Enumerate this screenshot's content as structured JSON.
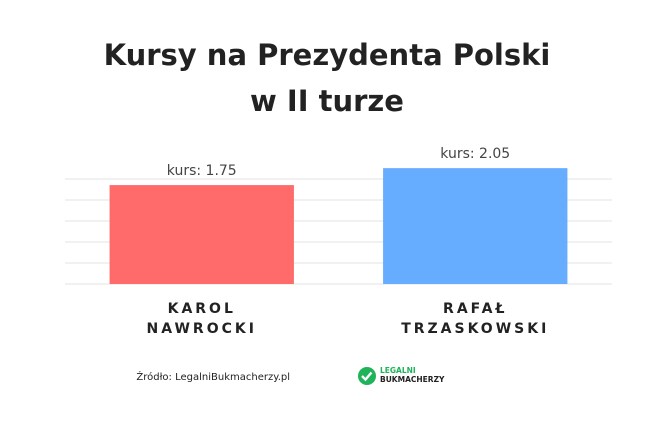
{
  "chart_data": {
    "type": "bar",
    "title": [
      "Kursy na Prezydenta Polski",
      "w II turze"
    ],
    "categories": [
      "KAROL NAWROCKI",
      "RAFAŁ TRZASKOWSKI"
    ],
    "series": [
      {
        "name": "kurs",
        "values": [
          1.75,
          2.05
        ],
        "value_labels": [
          "kurs: 1.75",
          "kurs: 2.05"
        ],
        "colors": [
          "#ff6b6b",
          "#66adff"
        ]
      }
    ],
    "ylim": [
      0,
      2.3
    ]
  },
  "footer": {
    "source": "Źródło: LegalniBukmacherzy.pl",
    "logo": [
      "LEGALNI",
      "BUKMACHERZY"
    ]
  }
}
